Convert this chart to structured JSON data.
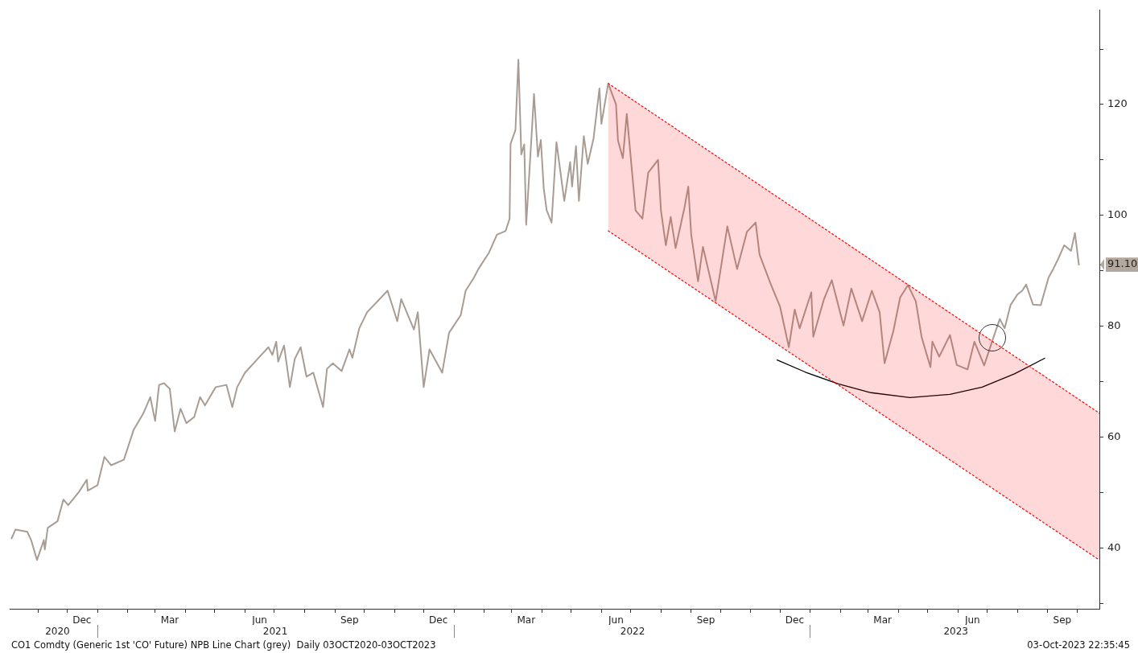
{
  "chart_data": {
    "type": "line",
    "xlim": [
      "2020-10-03",
      "2023-10-24"
    ],
    "ylim": [
      29,
      137
    ],
    "yticks": [
      {
        "value": 30,
        "label": null
      },
      40,
      {
        "value": 50,
        "label": null
      },
      60,
      {
        "value": 70,
        "label": null
      },
      80,
      {
        "value": 90,
        "label": null
      },
      {
        "value": 91.1,
        "label": "91.10"
      },
      100,
      {
        "value": 110,
        "label": null
      },
      120,
      {
        "value": 130,
        "label": null
      }
    ],
    "xticks": [
      {
        "value": "2020-11-01",
        "label": null
      },
      {
        "value": "2020-12-01",
        "label": null
      },
      {
        "value": "2020-12-16",
        "label": "Dec"
      },
      {
        "value": "2021-01-01",
        "label": null
      },
      {
        "value": "2021-02-01",
        "label": null
      },
      {
        "value": "2021-03-01",
        "label": null
      },
      {
        "value": "2021-03-16",
        "label": "Mar"
      },
      {
        "value": "2021-04-01",
        "label": null
      },
      {
        "value": "2021-05-01",
        "label": null
      },
      {
        "value": "2021-06-01",
        "label": null
      },
      {
        "value": "2021-06-16",
        "label": "Jun"
      },
      {
        "value": "2021-07-01",
        "label": null
      },
      {
        "value": "2021-08-01",
        "label": null
      },
      {
        "value": "2021-09-01",
        "label": null
      },
      {
        "value": "2021-09-16",
        "label": "Sep"
      },
      {
        "value": "2021-10-01",
        "label": null
      },
      {
        "value": "2021-11-01",
        "label": null
      },
      {
        "value": "2021-12-01",
        "label": null
      },
      {
        "value": "2021-12-16",
        "label": "Dec"
      },
      {
        "value": "2022-01-01",
        "label": null
      },
      {
        "value": "2022-02-01",
        "label": null
      },
      {
        "value": "2022-03-01",
        "label": null
      },
      {
        "value": "2022-03-16",
        "label": "Mar"
      },
      {
        "value": "2022-04-01",
        "label": null
      },
      {
        "value": "2022-05-01",
        "label": null
      },
      {
        "value": "2022-06-01",
        "label": null
      },
      {
        "value": "2022-06-16",
        "label": "Jun"
      },
      {
        "value": "2022-07-01",
        "label": null
      },
      {
        "value": "2022-08-01",
        "label": null
      },
      {
        "value": "2022-09-01",
        "label": null
      },
      {
        "value": "2022-09-16",
        "label": "Sep"
      },
      {
        "value": "2022-10-01",
        "label": null
      },
      {
        "value": "2022-11-01",
        "label": null
      },
      {
        "value": "2022-12-01",
        "label": null
      },
      {
        "value": "2022-12-16",
        "label": "Dec"
      },
      {
        "value": "2023-01-01",
        "label": null
      },
      {
        "value": "2023-02-01",
        "label": null
      },
      {
        "value": "2023-03-01",
        "label": null
      },
      {
        "value": "2023-03-16",
        "label": "Mar"
      },
      {
        "value": "2023-04-01",
        "label": null
      },
      {
        "value": "2023-05-01",
        "label": null
      },
      {
        "value": "2023-06-01",
        "label": null
      },
      {
        "value": "2023-06-16",
        "label": "Jun"
      },
      {
        "value": "2023-07-01",
        "label": null
      },
      {
        "value": "2023-08-01",
        "label": null
      },
      {
        "value": "2023-09-01",
        "label": null
      },
      {
        "value": "2023-09-16",
        "label": "Sep"
      },
      {
        "value": "2023-10-01",
        "label": null
      }
    ],
    "x2lim": [
      "2020-10-03",
      "2023-10-24"
    ],
    "x2ticks": [
      {
        "value": "2020-11-21",
        "label": "2020"
      },
      {
        "value": "2021-01-01",
        "label": null
      },
      {
        "value": "2021-07-02",
        "label": "2021"
      },
      {
        "value": "2022-01-01",
        "label": null
      },
      {
        "value": "2022-07-03",
        "label": "2022"
      },
      {
        "value": "2023-01-01",
        "label": null
      },
      {
        "value": "2023-05-30",
        "label": "2023"
      }
    ],
    "grid": false,
    "legend": false,
    "marker": "none",
    "annotations": [
      "CO1 Comdty (Generic 1st 'CO' Future) NPB Line Chart (grey)  Daily 03OCT2020-03OCT2023",
      "03-Oct-2023 22:35:45"
    ],
    "series": [
      {
        "color": "#ff0000",
        "line_style": "dotted",
        "x": [
          "2022-06-08",
          "2023-10-24"
        ],
        "values": [
          123.8,
          64.3
        ],
        "lower": [
          97.2,
          37.8
        ],
        "upper": [
          123.8,
          64.3
        ]
      },
      {
        "color": "#ff0000",
        "line_style": "dotted",
        "x": [
          "2022-06-08",
          "2023-10-24"
        ],
        "values": [
          97.2,
          37.8
        ]
      },
      {
        "color": "#a99d93",
        "line_style": "solid",
        "x": [
          "2020-10-05",
          "2020-10-09",
          "2020-10-21",
          "2020-10-25",
          "2020-10-31",
          "2020-11-07",
          "2020-11-08",
          "2020-11-11",
          "2020-11-21",
          "2020-11-27",
          "2020-12-02",
          "2020-12-13",
          "2020-12-21",
          "2020-12-22",
          "2021-01-01",
          "2021-01-08",
          "2021-01-15",
          "2021-01-28",
          "2021-02-07",
          "2021-02-17",
          "2021-02-24",
          "2021-03-01",
          "2021-03-05",
          "2021-03-10",
          "2021-03-16",
          "2021-03-21",
          "2021-03-27",
          "2021-04-02",
          "2021-04-10",
          "2021-04-16",
          "2021-04-21",
          "2021-05-02",
          "2021-05-13",
          "2021-05-19",
          "2021-05-24",
          "2021-06-01",
          "2021-06-15",
          "2021-06-25",
          "2021-06-29",
          "2021-07-03",
          "2021-07-05",
          "2021-07-11",
          "2021-07-17",
          "2021-07-22",
          "2021-07-28",
          "2021-08-03",
          "2021-08-10",
          "2021-08-20",
          "2021-08-24",
          "2021-08-30",
          "2021-09-08",
          "2021-09-16",
          "2021-09-19",
          "2021-09-26",
          "2021-10-04",
          "2021-10-25",
          "2021-11-04",
          "2021-11-08",
          "2021-11-21",
          "2021-11-25",
          "2021-12-01",
          "2021-12-07",
          "2021-12-20",
          "2021-12-27",
          "2022-01-08",
          "2022-01-13",
          "2022-01-21",
          "2022-01-26",
          "2022-02-06",
          "2022-02-14",
          "2022-02-23",
          "2022-02-27",
          "2022-02-28",
          "2022-03-05",
          "2022-03-08",
          "2022-03-11",
          "2022-03-14",
          "2022-03-16",
          "2022-03-22",
          "2022-03-24",
          "2022-03-28",
          "2022-03-31",
          "2022-04-03",
          "2022-04-06",
          "2022-04-11",
          "2022-04-16",
          "2022-04-24",
          "2022-04-30",
          "2022-05-02",
          "2022-05-06",
          "2022-05-09",
          "2022-05-14",
          "2022-05-18",
          "2022-05-24",
          "2022-05-30",
          "2022-06-01",
          "2022-06-08",
          "2022-06-16",
          "2022-06-18",
          "2022-06-23",
          "2022-06-27",
          "2022-07-06",
          "2022-07-13",
          "2022-07-19",
          "2022-07-29",
          "2022-08-01",
          "2022-08-06",
          "2022-08-11",
          "2022-08-16",
          "2022-08-25",
          "2022-08-29",
          "2022-09-01",
          "2022-09-08",
          "2022-09-13",
          "2022-09-26",
          "2022-10-08",
          "2022-10-18",
          "2022-10-28",
          "2022-11-06",
          "2022-11-10",
          "2022-11-21",
          "2022-12-01",
          "2022-12-10",
          "2022-12-16",
          "2022-12-21",
          "2023-01-02",
          "2023-01-04",
          "2023-01-15",
          "2023-01-23",
          "2023-02-04",
          "2023-02-12",
          "2023-02-23",
          "2023-03-05",
          "2023-03-13",
          "2023-03-18",
          "2023-03-27",
          "2023-04-03",
          "2023-04-11",
          "2023-04-19",
          "2023-04-25",
          "2023-05-04",
          "2023-05-06",
          "2023-05-13",
          "2023-05-24",
          "2023-05-31",
          "2023-06-11",
          "2023-06-18",
          "2023-06-28",
          "2023-07-07",
          "2023-07-14",
          "2023-07-19",
          "2023-07-25",
          "2023-08-01",
          "2023-08-06",
          "2023-08-10",
          "2023-08-17",
          "2023-08-25",
          "2023-09-02",
          "2023-09-07",
          "2023-09-12",
          "2023-09-18",
          "2023-09-25",
          "2023-09-29",
          "2023-10-03"
        ],
        "values": [
          41.7,
          43.3,
          42.9,
          41.4,
          37.8,
          41.4,
          39.7,
          43.6,
          44.8,
          48.7,
          47.7,
          50.1,
          52.3,
          50.3,
          51.3,
          56.4,
          54.9,
          55.9,
          61.3,
          64.3,
          67.2,
          62.9,
          69.4,
          69.7,
          68.7,
          61.0,
          65.1,
          62.5,
          63.6,
          67.2,
          65.7,
          69.0,
          69.4,
          65.4,
          69.0,
          71.6,
          74.3,
          76.2,
          74.8,
          77.2,
          73.6,
          76.5,
          69.0,
          74.1,
          76.2,
          70.9,
          71.6,
          65.4,
          72.3,
          73.3,
          71.9,
          75.8,
          74.3,
          79.6,
          82.5,
          86.4,
          80.9,
          84.9,
          79.4,
          82.5,
          69.0,
          75.8,
          71.6,
          78.8,
          82.0,
          86.4,
          88.6,
          90.3,
          93.3,
          96.5,
          97.2,
          99.4,
          112.9,
          115.4,
          128.1,
          111.0,
          112.8,
          98.3,
          115.8,
          121.9,
          110.6,
          113.6,
          104.8,
          100.9,
          98.7,
          113.2,
          102.6,
          109.6,
          105.2,
          112.5,
          102.6,
          114.3,
          109.3,
          113.9,
          122.9,
          116.5,
          123.8,
          120.0,
          113.5,
          110.3,
          118.3,
          100.9,
          99.4,
          107.7,
          110.0,
          100.9,
          94.6,
          99.7,
          94.1,
          101.3,
          105.2,
          96.5,
          88.1,
          94.3,
          84.5,
          98.0,
          90.3,
          97.0,
          98.7,
          92.9,
          87.8,
          83.5,
          76.2,
          83.0,
          79.6,
          86.1,
          78.1,
          84.9,
          88.3,
          80.1,
          86.8,
          80.9,
          86.4,
          82.5,
          73.3,
          79.1,
          85.2,
          87.4,
          84.5,
          78.0,
          72.6,
          77.2,
          74.5,
          78.4,
          73.0,
          72.2,
          77.2,
          72.9,
          77.7,
          81.3,
          79.6,
          83.8,
          85.7,
          86.4,
          87.5,
          83.9,
          83.8,
          88.8,
          90.4,
          92.2,
          94.6,
          93.6,
          96.8,
          91.1
        ]
      },
      {
        "color": "#000000",
        "line_style": "solid",
        "x": [
          "2022-11-28",
          "2022-12-27",
          "2023-01-29",
          "2023-03-04",
          "2023-04-13",
          "2023-05-24",
          "2023-06-26",
          "2023-07-29",
          "2023-08-29"
        ],
        "values": [
          73.9,
          71.7,
          69.6,
          68.0,
          67.1,
          67.7,
          69.0,
          71.4,
          74.2
        ]
      }
    ]
  }
}
